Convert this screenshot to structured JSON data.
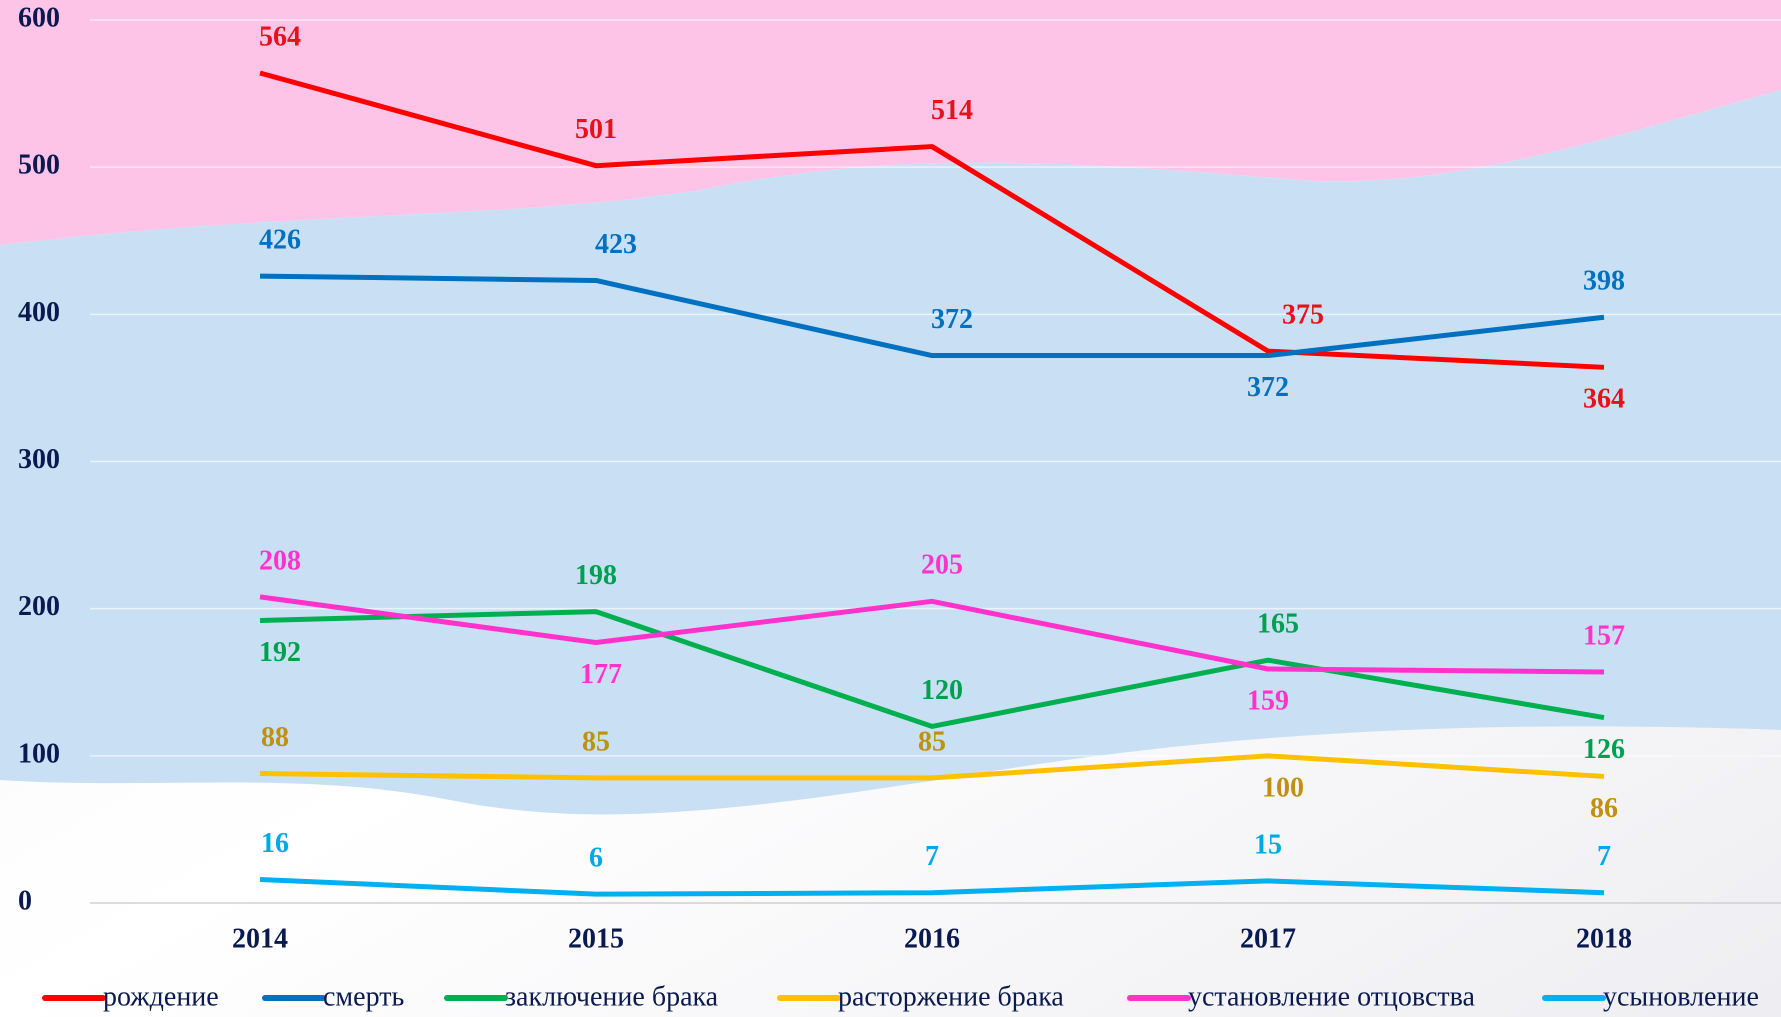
{
  "chart_data": {
    "type": "line",
    "categories": [
      "2014",
      "2015",
      "2016",
      "2017",
      "2018"
    ],
    "ylim": [
      0,
      600
    ],
    "yticks": [
      0,
      100,
      200,
      300,
      400,
      500,
      600
    ],
    "grid": true,
    "legend": "bottom",
    "series": [
      {
        "name": "рождение",
        "color": "#ff0000",
        "label_color": "#e8101a",
        "values": [
          564,
          501,
          514,
          375,
          364
        ]
      },
      {
        "name": "смерть",
        "color": "#0070c0",
        "label_color": "#0070c0",
        "values": [
          426,
          423,
          372,
          372,
          398
        ]
      },
      {
        "name": "заключение брака",
        "color": "#00b050",
        "label_color": "#00a050",
        "values": [
          192,
          198,
          120,
          165,
          126
        ]
      },
      {
        "name": "расторжение брака",
        "color": "#ffc000",
        "label_color": "#c09010",
        "values": [
          88,
          85,
          85,
          100,
          86
        ]
      },
      {
        "name": "установление отцовства",
        "color": "#ff33cc",
        "label_color": "#ff33cc",
        "values": [
          208,
          177,
          205,
          159,
          157
        ]
      },
      {
        "name": "усыновление",
        "color": "#00b0f0",
        "label_color": "#00a8e8",
        "values": [
          16,
          6,
          7,
          15,
          7
        ]
      }
    ]
  }
}
